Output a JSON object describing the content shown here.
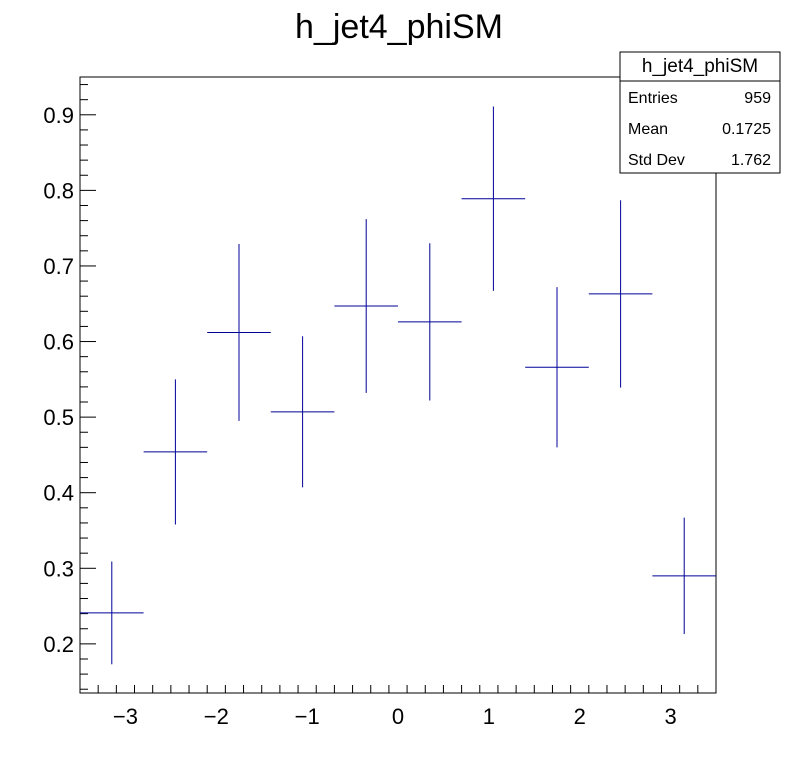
{
  "chart_data": {
    "type": "scatter",
    "title": "h_jet4_phiSM",
    "xlabel": "",
    "ylabel": "",
    "xlim": [
      -3.5,
      3.5
    ],
    "ylim": [
      0.135,
      0.95
    ],
    "xticks": [
      -3,
      -2,
      -1,
      0,
      1,
      2,
      3
    ],
    "xtick_labels": [
      "−3",
      "−2",
      "−1",
      "0",
      "1",
      "2",
      "3"
    ],
    "yticks": [
      0.2,
      0.3,
      0.4,
      0.5,
      0.6,
      0.7,
      0.8,
      0.9
    ],
    "ytick_labels": [
      "0.2",
      "0.3",
      "0.4",
      "0.5",
      "0.6",
      "0.7",
      "0.8",
      "0.9"
    ],
    "grid": false,
    "series_color": "#000099",
    "points": [
      {
        "x": -3.15,
        "y": 0.241,
        "xerr": 0.35,
        "yerr": 0.068
      },
      {
        "x": -2.45,
        "y": 0.454,
        "xerr": 0.35,
        "yerr": 0.096
      },
      {
        "x": -1.75,
        "y": 0.612,
        "xerr": 0.35,
        "yerr": 0.117
      },
      {
        "x": -1.05,
        "y": 0.507,
        "xerr": 0.35,
        "yerr": 0.1
      },
      {
        "x": -0.35,
        "y": 0.647,
        "xerr": 0.35,
        "yerr": 0.115
      },
      {
        "x": 0.35,
        "y": 0.626,
        "xerr": 0.35,
        "yerr": 0.104
      },
      {
        "x": 1.05,
        "y": 0.789,
        "xerr": 0.35,
        "yerr": 0.122
      },
      {
        "x": 1.75,
        "y": 0.566,
        "xerr": 0.35,
        "yerr": 0.106
      },
      {
        "x": 2.45,
        "y": 0.663,
        "xerr": 0.35,
        "yerr": 0.124
      },
      {
        "x": 3.15,
        "y": 0.29,
        "xerr": 0.35,
        "yerr": 0.077
      }
    ],
    "stats_box": {
      "title": "h_jet4_phiSM",
      "rows": [
        {
          "label": "Entries",
          "value": "959"
        },
        {
          "label": "Mean",
          "value": "0.1725"
        },
        {
          "label": "Std Dev",
          "value": "1.762"
        }
      ]
    }
  }
}
